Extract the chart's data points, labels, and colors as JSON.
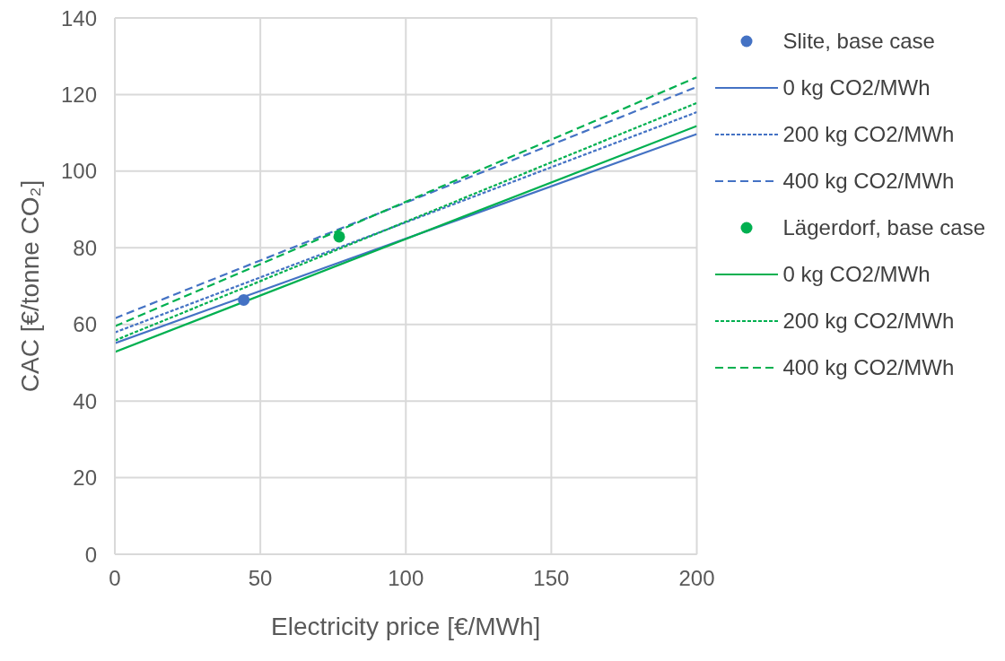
{
  "chart_data": {
    "type": "line",
    "xlabel": "Electricity price [€/MWh]",
    "ylabel": "CAC [€/tonne CO₂]",
    "xlim": [
      0,
      200
    ],
    "xticks": [
      0,
      50,
      100,
      150,
      200
    ],
    "ylim": [
      0,
      140
    ],
    "yticks": [
      0,
      20,
      40,
      60,
      80,
      100,
      120,
      140
    ],
    "grid": true,
    "legend": "right",
    "series": [
      {
        "name": "Slite, base case",
        "type": "scatter",
        "marker": "circle",
        "color": "#4472c4",
        "x": [
          44.3
        ],
        "values": [
          66.4
        ]
      },
      {
        "name": "0 kg CO2/MWh",
        "line_style": "solid",
        "color": "#4472c4",
        "x": [
          0,
          200
        ],
        "values": [
          55.1,
          109.7
        ]
      },
      {
        "name": "200 kg CO2/MWh",
        "line_style": "dotted",
        "color": "#4472c4",
        "x": [
          0,
          200
        ],
        "values": [
          57.9,
          115.4
        ]
      },
      {
        "name": "400 kg CO2/MWh",
        "line_style": "dashed",
        "color": "#4472c4",
        "x": [
          0,
          200
        ],
        "values": [
          61.6,
          122.0
        ]
      },
      {
        "name": "Lägerdorf, base case",
        "type": "scatter",
        "marker": "circle",
        "color": "#00b050",
        "x": [
          77.1
        ],
        "values": [
          82.9
        ]
      },
      {
        "name": "0 kg CO2/MWh",
        "line_style": "solid",
        "color": "#00b050",
        "x": [
          0,
          200
        ],
        "values": [
          52.8,
          111.8
        ]
      },
      {
        "name": "200 kg CO2/MWh",
        "line_style": "dotted",
        "color": "#00b050",
        "x": [
          0,
          200
        ],
        "values": [
          55.8,
          117.8
        ]
      },
      {
        "name": "400 kg CO2/MWh",
        "line_style": "dashed",
        "color": "#00b050",
        "x": [
          0,
          200
        ],
        "values": [
          59.5,
          124.5
        ]
      }
    ]
  }
}
